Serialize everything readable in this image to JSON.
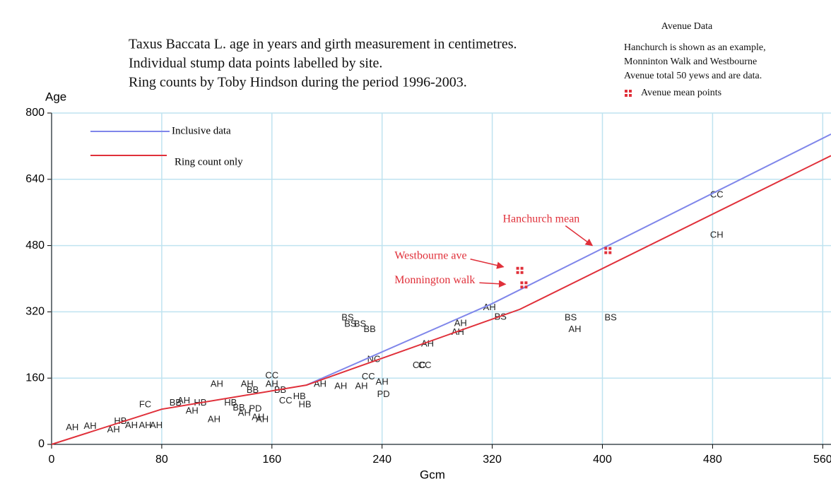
{
  "chart_data": {
    "type": "scatter",
    "title": [
      "Taxus Baccata L. age in years and girth measurement in centimetres.",
      "Individual stump data points labelled by site.",
      "Ring counts by Toby Hindson during the period 1996-2003."
    ],
    "note": {
      "title": "Avenue Data",
      "lines": [
        "Hanchurch is shown as an example,",
        "Monninton Walk and Westbourne",
        "Avenue total 50 yews and are data."
      ]
    },
    "x_label": "Gcm",
    "y_label": "Age",
    "xlim": [
      0,
      566
    ],
    "ylim": [
      0,
      800
    ],
    "xticks": [
      0,
      80,
      160,
      240,
      320,
      400,
      480,
      560
    ],
    "yticks": [
      0,
      160,
      320,
      480,
      640,
      800
    ],
    "grid": true,
    "series": [
      {
        "name": "Inclusive data",
        "color": "#7f86ea",
        "x": [
          185,
          320,
          566
        ],
        "values": [
          143,
          340,
          749
        ]
      },
      {
        "name": "Ring count only",
        "color": "#e0303a",
        "x": [
          0,
          80,
          185,
          340,
          566
        ],
        "values": [
          0,
          85,
          143,
          326,
          697
        ]
      }
    ],
    "points": {
      "color": "#222222",
      "x": [
        15,
        28,
        45,
        50,
        58,
        68,
        76,
        68,
        90,
        96,
        108,
        102,
        118,
        120,
        130,
        136,
        140,
        142,
        146,
        150,
        148,
        153,
        160,
        160,
        166,
        170,
        180,
        184,
        195,
        210,
        225,
        230,
        240,
        241,
        234,
        215,
        217,
        224,
        231,
        267,
        271,
        273,
        295,
        297,
        318,
        326,
        377,
        380,
        406,
        483,
        483
      ],
      "y": [
        40,
        43,
        35,
        55,
        45,
        45,
        45,
        95,
        100,
        105,
        100,
        80,
        60,
        145,
        100,
        88,
        75,
        145,
        130,
        65,
        85,
        60,
        165,
        145,
        130,
        105,
        115,
        95,
        145,
        140,
        140,
        163,
        150,
        120,
        205,
        305,
        290,
        290,
        277,
        190,
        190,
        242,
        270,
        292,
        330,
        307,
        305,
        277,
        305,
        602,
        505
      ],
      "labels": [
        "AH",
        "AH",
        "AH",
        "HB",
        "AH",
        "AH",
        "AH",
        "FC",
        "BB",
        "AH",
        "HB",
        "AH",
        "AH",
        "AH",
        "HB",
        "BB",
        "AH",
        "AH",
        "BB",
        "AH",
        "PD",
        "AH",
        "CC",
        "AH",
        "BB",
        "CC",
        "HB",
        "HB",
        "AH",
        "AH",
        "AH",
        "CC",
        "AH",
        "PD",
        "NC",
        "BS",
        "BS",
        "BS",
        "BB",
        "CC",
        "CC",
        "AH",
        "AH",
        "AH",
        "AH",
        "BS",
        "BS",
        "AH",
        "BS",
        "CC",
        "CH"
      ]
    },
    "means": {
      "name": "Avenue mean points",
      "color": "#e0303a",
      "labels": [
        "Westbourne ave",
        "Monnington walk",
        "Hanchurch mean"
      ],
      "x": [
        340,
        343,
        404
      ],
      "y": [
        420,
        385,
        468
      ]
    }
  }
}
